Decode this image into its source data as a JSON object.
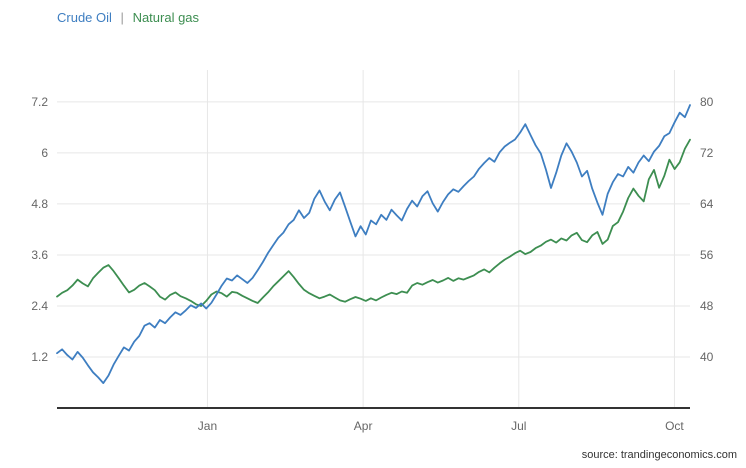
{
  "legend": {
    "items": [
      {
        "label": "Crude Oil",
        "color": "#3e7ec1"
      },
      {
        "label": "Natural gas",
        "color": "#3d8e51"
      }
    ],
    "separator": "|"
  },
  "footer": {
    "source_text": "source: trandingeconomics.com"
  },
  "colors": {
    "background": "#ffffff",
    "grid": "#e7e7e7",
    "axis_line": "#333333",
    "tick_text": "#666666",
    "source_text": "#333333",
    "crude_oil_line": "#3e7ec1",
    "natural_gas_line": "#3d8e51"
  },
  "chart_data": {
    "type": "line",
    "title": "",
    "x": {
      "min": -2.9,
      "max": 9.3,
      "ticks": [
        0,
        3,
        6,
        9
      ],
      "tick_labels": [
        "Jan",
        "Apr",
        "Jul",
        "Oct"
      ]
    },
    "left_axis": {
      "range": [
        0,
        7.95
      ],
      "ticks": [
        1.2,
        2.4,
        3.6,
        4.8,
        6,
        7.2
      ],
      "tick_labels": [
        "1.2",
        "2.4",
        "3.6",
        "4.8",
        "6",
        "7.2"
      ]
    },
    "right_axis": {
      "range": [
        32,
        85
      ],
      "ticks": [
        40,
        48,
        56,
        64,
        72,
        80
      ],
      "tick_labels": [
        "40",
        "48",
        "56",
        "64",
        "72",
        "80"
      ]
    },
    "grid": {
      "horizontal": true,
      "vertical": true,
      "color": "#e7e7e7"
    },
    "legend_position": "top-left",
    "series": [
      {
        "name": "Natural gas",
        "axis": "left",
        "color": "#3d8e51",
        "values": [
          2.62,
          2.71,
          2.77,
          2.88,
          3.02,
          2.93,
          2.86,
          3.05,
          3.18,
          3.3,
          3.36,
          3.22,
          3.05,
          2.88,
          2.72,
          2.78,
          2.88,
          2.94,
          2.86,
          2.77,
          2.62,
          2.55,
          2.66,
          2.72,
          2.63,
          2.58,
          2.52,
          2.44,
          2.4,
          2.52,
          2.67,
          2.74,
          2.7,
          2.62,
          2.73,
          2.71,
          2.64,
          2.58,
          2.52,
          2.47,
          2.6,
          2.72,
          2.86,
          2.98,
          3.1,
          3.22,
          3.08,
          2.92,
          2.78,
          2.7,
          2.64,
          2.58,
          2.62,
          2.67,
          2.6,
          2.53,
          2.5,
          2.56,
          2.61,
          2.57,
          2.52,
          2.58,
          2.53,
          2.6,
          2.66,
          2.71,
          2.68,
          2.74,
          2.71,
          2.88,
          2.94,
          2.9,
          2.96,
          3.01,
          2.95,
          3.0,
          3.06,
          2.99,
          3.05,
          3.02,
          3.07,
          3.12,
          3.2,
          3.26,
          3.19,
          3.3,
          3.4,
          3.49,
          3.56,
          3.64,
          3.7,
          3.62,
          3.67,
          3.76,
          3.82,
          3.91,
          3.96,
          3.89,
          3.99,
          3.94,
          4.06,
          4.12,
          3.95,
          3.9,
          4.06,
          4.14,
          3.86,
          3.96,
          4.28,
          4.37,
          4.62,
          4.94,
          5.16,
          4.99,
          4.86,
          5.38,
          5.6,
          5.18,
          5.46,
          5.84,
          5.62,
          5.78,
          6.1,
          6.31
        ]
      },
      {
        "name": "Crude Oil",
        "axis": "right",
        "color": "#3e7ec1",
        "values": [
          40.6,
          41.2,
          40.3,
          39.6,
          40.8,
          39.9,
          38.7,
          37.6,
          36.8,
          35.9,
          37.1,
          38.8,
          40.2,
          41.5,
          41.0,
          42.4,
          43.3,
          44.9,
          45.3,
          44.6,
          45.8,
          45.3,
          46.2,
          47.0,
          46.6,
          47.3,
          48.1,
          47.7,
          48.4,
          47.6,
          48.5,
          49.8,
          51.2,
          52.3,
          52.0,
          52.8,
          52.2,
          51.6,
          52.4,
          53.6,
          54.9,
          56.3,
          57.5,
          58.7,
          59.5,
          60.8,
          61.5,
          63.0,
          61.8,
          62.6,
          64.8,
          66.1,
          64.4,
          63.0,
          64.7,
          65.8,
          63.5,
          61.2,
          58.9,
          60.5,
          59.2,
          61.4,
          60.8,
          62.3,
          61.5,
          63.1,
          62.2,
          61.4,
          63.2,
          64.5,
          63.6,
          65.2,
          66.0,
          64.1,
          62.8,
          64.3,
          65.5,
          66.3,
          65.9,
          66.8,
          67.6,
          68.3,
          69.5,
          70.4,
          71.2,
          70.6,
          72.1,
          73.0,
          73.6,
          74.1,
          75.2,
          76.5,
          74.8,
          73.2,
          71.9,
          69.4,
          66.5,
          68.9,
          71.6,
          73.5,
          72.2,
          70.5,
          68.3,
          69.2,
          66.4,
          64.2,
          62.3,
          65.6,
          67.4,
          68.7,
          68.3,
          69.8,
          68.9,
          70.5,
          71.6,
          70.7,
          72.2,
          73.1,
          74.6,
          75.1,
          76.8,
          78.3,
          77.6,
          79.5
        ]
      }
    ]
  }
}
